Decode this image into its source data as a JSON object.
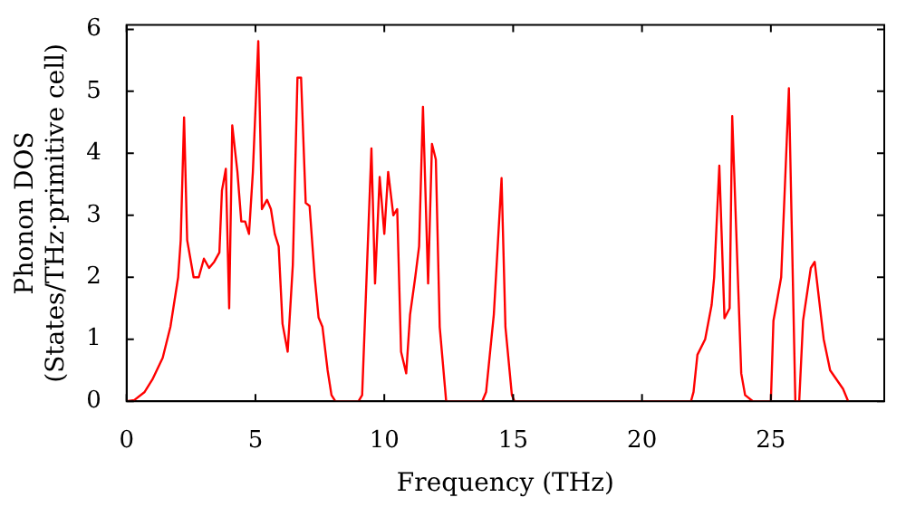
{
  "chart_data": {
    "type": "line",
    "xlabel": "Frequency (THz)",
    "ylabel": "Phonon DOS\n(States/THz·primitive cell)",
    "xlim": [
      0,
      29.4
    ],
    "ylim": [
      0,
      6.07
    ],
    "xticks": [
      0,
      5,
      10,
      15,
      20,
      25
    ],
    "yticks": [
      0,
      1,
      2,
      3,
      4,
      5,
      6
    ],
    "marker": "none",
    "line_style": "solid",
    "series": [
      {
        "color": "#ff0000",
        "x": [
          0,
          0.3,
          0.7,
          1.0,
          1.4,
          1.7,
          2.0,
          2.1,
          2.23,
          2.35,
          2.6,
          2.8,
          3.0,
          3.2,
          3.4,
          3.6,
          3.7,
          3.85,
          3.98,
          4.1,
          4.3,
          4.45,
          4.6,
          4.75,
          4.9,
          5.11,
          5.25,
          5.45,
          5.6,
          5.75,
          5.9,
          6.05,
          6.25,
          6.45,
          6.63,
          6.77,
          6.95,
          7.1,
          7.3,
          7.45,
          7.6,
          7.8,
          7.95,
          8.1,
          9.0,
          9.14,
          9.5,
          9.64,
          9.82,
          10.0,
          10.15,
          10.35,
          10.5,
          10.65,
          10.85,
          11.0,
          11.2,
          11.35,
          11.5,
          11.7,
          11.85,
          12.0,
          12.15,
          12.4,
          13.8,
          13.95,
          14.25,
          14.55,
          14.7,
          14.95,
          15.05,
          21.9,
          22.0,
          22.15,
          22.45,
          22.7,
          22.8,
          23.0,
          23.2,
          23.4,
          23.5,
          23.85,
          24.0,
          24.3,
          24.6,
          25.0,
          25.1,
          25.4,
          25.7,
          25.95,
          26.1,
          26.25,
          26.55,
          26.7,
          27.05,
          27.3,
          27.8,
          28.0
        ],
        "values": [
          0,
          0.02,
          0.15,
          0.35,
          0.7,
          1.2,
          2.0,
          2.6,
          4.58,
          2.6,
          2.0,
          2.0,
          2.3,
          2.15,
          2.25,
          2.4,
          3.4,
          3.75,
          1.5,
          4.45,
          3.7,
          2.9,
          2.9,
          2.7,
          3.7,
          5.81,
          3.1,
          3.25,
          3.1,
          2.7,
          2.5,
          1.25,
          0.8,
          2.2,
          5.22,
          5.22,
          3.2,
          3.15,
          2.0,
          1.35,
          1.2,
          0.5,
          0.1,
          0,
          0,
          0.1,
          4.08,
          1.9,
          3.62,
          2.7,
          3.7,
          3.0,
          3.1,
          0.8,
          0.45,
          1.4,
          2.0,
          2.5,
          4.75,
          1.9,
          4.15,
          3.9,
          1.2,
          0,
          0,
          0.15,
          1.4,
          3.6,
          1.2,
          0.1,
          0,
          0,
          0.15,
          0.75,
          1.0,
          1.55,
          2.0,
          3.8,
          1.34,
          1.5,
          4.6,
          0.45,
          0.1,
          0,
          0,
          0,
          1.3,
          2.0,
          5.05,
          0,
          0,
          1.3,
          2.15,
          2.25,
          1.0,
          0.5,
          0.2,
          0
        ]
      }
    ]
  }
}
